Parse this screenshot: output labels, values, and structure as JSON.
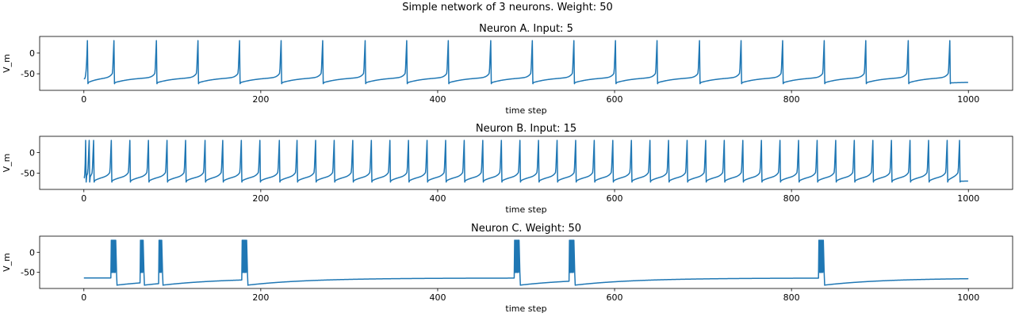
{
  "figure": {
    "suptitle": "Simple network of 3 neurons. Weight: 50"
  },
  "colors": {
    "trace": "#1f77b4"
  },
  "chart_data": [
    {
      "type": "line",
      "title": "Neuron A. Input: 5",
      "xlabel": "time step",
      "ylabel": "V_m",
      "xlim": [
        -50,
        1050
      ],
      "ylim": [
        -90,
        40
      ],
      "xticks": [
        0,
        200,
        400,
        600,
        800,
        1000
      ],
      "yticks": [
        0,
        -50
      ],
      "v_rest": -65,
      "v_reset": -72,
      "v_peak": 30,
      "spike_times": [
        4,
        34,
        82,
        129,
        176,
        223,
        270,
        318,
        365,
        412,
        460,
        507,
        554,
        601,
        648,
        696,
        743,
        790,
        837,
        884,
        932,
        979
      ],
      "x_end": 1000
    },
    {
      "type": "line",
      "title": "Neuron B. Input: 15",
      "xlabel": "time step",
      "ylabel": "V_m",
      "xlim": [
        -50,
        1050
      ],
      "ylim": [
        -90,
        40
      ],
      "xticks": [
        0,
        200,
        400,
        600,
        800,
        1000
      ],
      "yticks": [
        0,
        -50
      ],
      "v_rest": -65,
      "v_reset": -70,
      "v_peak": 30,
      "spike_times": [
        2,
        6,
        11,
        31,
        52,
        73,
        94,
        115,
        137,
        157,
        178,
        199,
        221,
        241,
        262,
        283,
        304,
        325,
        346,
        367,
        388,
        409,
        430,
        451,
        472,
        493,
        514,
        535,
        556,
        577,
        598,
        619,
        640,
        661,
        682,
        703,
        724,
        745,
        766,
        787,
        808,
        829,
        850,
        871,
        892,
        913,
        934,
        955,
        976,
        990
      ],
      "x_end": 1000
    },
    {
      "type": "line",
      "title": "Neuron C. Weight: 50",
      "xlabel": "time step",
      "ylabel": "V_m",
      "xlim": [
        -50,
        1050
      ],
      "ylim": [
        -90,
        40
      ],
      "xticks": [
        0,
        200,
        400,
        600,
        800,
        1000
      ],
      "yticks": [
        0,
        -50
      ],
      "v_rest": -64,
      "v_reset": -82,
      "v_peak": 30,
      "bursts": [
        {
          "start": 31,
          "end": 36
        },
        {
          "start": 64,
          "end": 67
        },
        {
          "start": 85,
          "end": 88
        },
        {
          "start": 179,
          "end": 184
        },
        {
          "start": 487,
          "end": 492
        },
        {
          "start": 549,
          "end": 554
        },
        {
          "start": 831,
          "end": 836
        }
      ],
      "x_end": 1000
    }
  ]
}
